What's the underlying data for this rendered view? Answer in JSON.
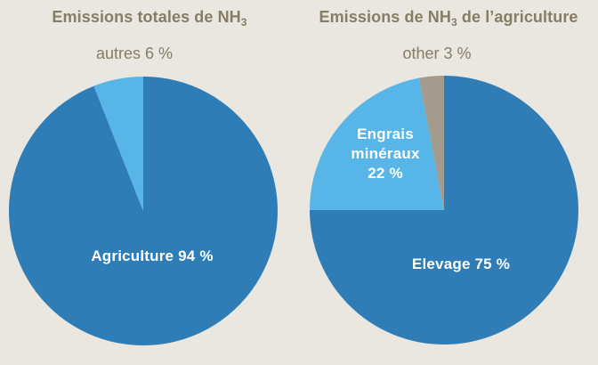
{
  "page": {
    "background_color": "#e9e7df"
  },
  "colors": {
    "dark_blue": "#2f7db7",
    "light_blue": "#58b5e8",
    "gray": "#a39b8e",
    "title_text": "#867d67",
    "inside_label_text": "#ffffff"
  },
  "chart_data": [
    {
      "type": "pie",
      "title_prefix": "Emissions totales de NH",
      "title_sub": "3",
      "title_suffix": "",
      "outside_label": "autres 6 %",
      "legend_position": "labels inside slices and above pie",
      "slices": [
        {
          "label": "Agriculture",
          "value": 94,
          "unit": "%",
          "color": "#2f7db7",
          "display": "Agriculture 94 %"
        },
        {
          "label": "autres",
          "value": 6,
          "unit": "%",
          "color": "#58b5e8",
          "display": "autres 6 %"
        }
      ]
    },
    {
      "type": "pie",
      "title_prefix": "Emissions de NH",
      "title_sub": "3",
      "title_suffix": " de l’agriculture",
      "outside_label": "other 3 %",
      "legend_position": "labels inside slices and above pie",
      "slices": [
        {
          "label": "Elevage",
          "value": 75,
          "unit": "%",
          "color": "#2f7db7",
          "display": "Elevage 75 %"
        },
        {
          "label": "Engrais minéraux",
          "value": 22,
          "unit": "%",
          "color": "#58b5e8",
          "display": "Engrais\nminéraux\n22 %"
        },
        {
          "label": "other",
          "value": 3,
          "unit": "%",
          "color": "#a39b8e",
          "display": "other 3 %"
        }
      ]
    }
  ]
}
